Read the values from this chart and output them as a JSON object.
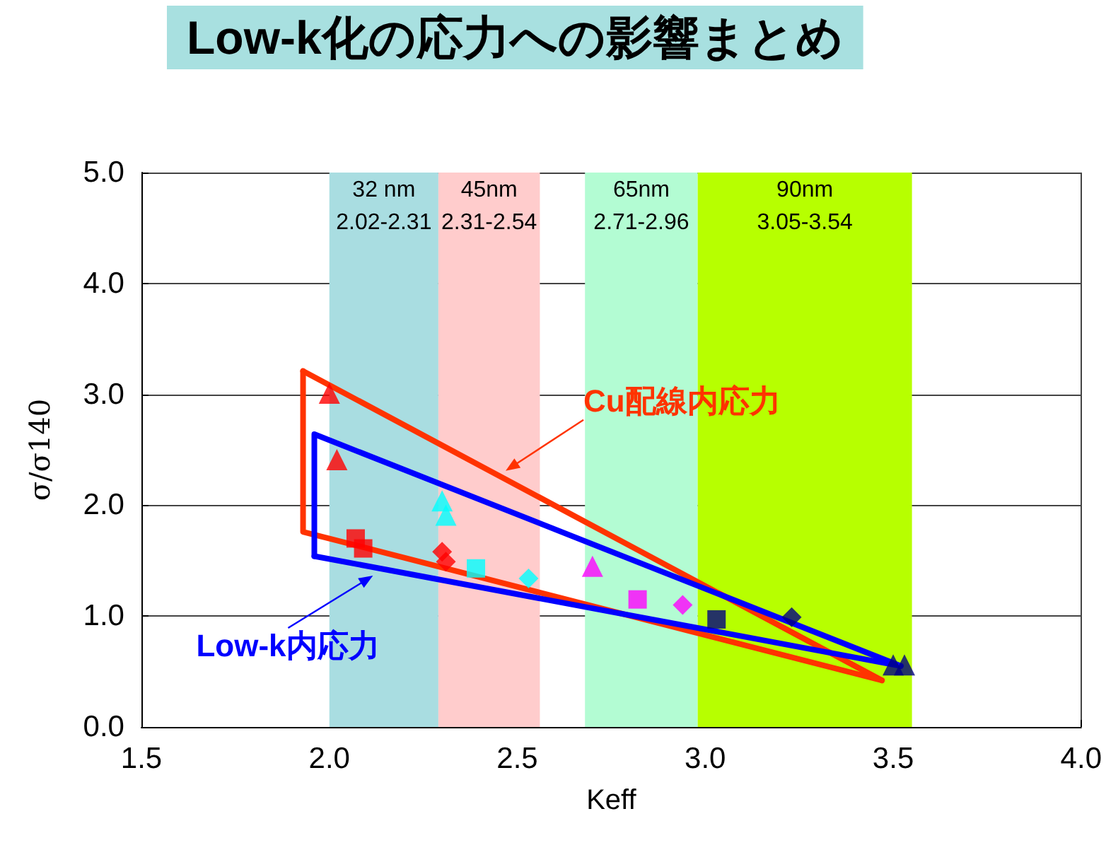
{
  "chart_data": {
    "type": "scatter",
    "title": "Low-k化の応力への影響まとめ",
    "xlabel": "Keff",
    "ylabel": "σ/σ140",
    "xlim": [
      1.5,
      4.0
    ],
    "xticks": [
      {
        "value": 1.5,
        "label": "1.5"
      },
      {
        "value": 2.0,
        "label": "2.0"
      },
      {
        "value": 2.5,
        "label": "2.5"
      },
      {
        "value": 3.0,
        "label": "3.0"
      },
      {
        "value": 3.5,
        "label": "3.5"
      },
      {
        "value": 4.0,
        "label": "4.0"
      }
    ],
    "ylim": [
      0,
      5
    ],
    "yticks": [
      {
        "value": 0,
        "label": "0.0"
      },
      {
        "value": 1,
        "label": "1.0"
      },
      {
        "value": 2,
        "label": "2.0"
      },
      {
        "value": 3,
        "label": "3.0"
      },
      {
        "value": 4,
        "label": "4.0"
      },
      {
        "value": 5,
        "label": "5.0"
      }
    ],
    "grid": true,
    "bands": [
      {
        "axis": "x",
        "from": 2.0,
        "to": 2.29,
        "label": "32 nm\n2.02-2.31",
        "color": "#a9dde1"
      },
      {
        "axis": "x",
        "from": 2.29,
        "to": 2.56,
        "label": "45nm\n2.31-2.54",
        "color": "#ffcccc"
      },
      {
        "axis": "x",
        "from": 2.68,
        "to": 2.98,
        "label": "65nm\n2.71-2.96",
        "color": "#b3fcd3"
      },
      {
        "axis": "x",
        "from": 2.98,
        "to": 3.55,
        "label": "90nm\n3.05-3.54",
        "color": "#b7ff00"
      }
    ],
    "series": [
      {
        "type": "line",
        "name": "Cu配線内応力",
        "color": "#ff3300",
        "marker": "none",
        "x": [
          1.93,
          3.47
        ],
        "values": [
          3.21,
          0.42
        ]
      },
      {
        "type": "line",
        "color": "#ff3300",
        "marker": "none",
        "x": [
          1.93,
          1.93,
          3.47
        ],
        "values": [
          3.21,
          1.76,
          0.42
        ]
      },
      {
        "type": "line",
        "name": "Low-k内応力",
        "color": "#0000ff",
        "marker": "none",
        "x": [
          1.96,
          3.52
        ],
        "values": [
          1.54,
          0.55
        ]
      },
      {
        "type": "line",
        "color": "#0000ff",
        "marker": "none",
        "x": [
          1.96,
          1.96,
          3.52
        ],
        "values": [
          1.54,
          2.64,
          0.55
        ]
      },
      {
        "color": "#ff0000",
        "marker": "triangle",
        "x": [
          2.0,
          2.02
        ],
        "values": [
          3.01,
          2.41
        ]
      },
      {
        "color": "#ff0000",
        "marker": "square",
        "x": [
          2.07,
          2.09
        ],
        "values": [
          1.7,
          1.61
        ]
      },
      {
        "color": "#ff0000",
        "marker": "diamond",
        "x": [
          2.3,
          2.31
        ],
        "values": [
          1.58,
          1.49
        ]
      },
      {
        "color": "#00ffff",
        "marker": "triangle",
        "x": [
          2.3,
          2.31
        ],
        "values": [
          2.04,
          1.91
        ]
      },
      {
        "color": "#00ffff",
        "marker": "square",
        "x": [
          2.39
        ],
        "values": [
          1.43
        ]
      },
      {
        "color": "#00ffff",
        "marker": "diamond",
        "x": [
          2.53
        ],
        "values": [
          1.34
        ]
      },
      {
        "color": "#ff00ff",
        "marker": "triangle",
        "x": [
          2.7
        ],
        "values": [
          1.45
        ]
      },
      {
        "color": "#ff00ff",
        "marker": "square",
        "x": [
          2.82
        ],
        "values": [
          1.15
        ]
      },
      {
        "color": "#ff00ff",
        "marker": "diamond",
        "x": [
          2.94
        ],
        "values": [
          1.1
        ]
      },
      {
        "color": "#000080",
        "marker": "square",
        "x": [
          3.03
        ],
        "values": [
          0.97
        ]
      },
      {
        "color": "#000080",
        "marker": "diamond",
        "x": [
          3.23
        ],
        "values": [
          0.99
        ]
      },
      {
        "color": "#000080",
        "marker": "triangle",
        "x": [
          3.5,
          3.53
        ],
        "values": [
          0.56,
          0.56
        ]
      }
    ]
  }
}
